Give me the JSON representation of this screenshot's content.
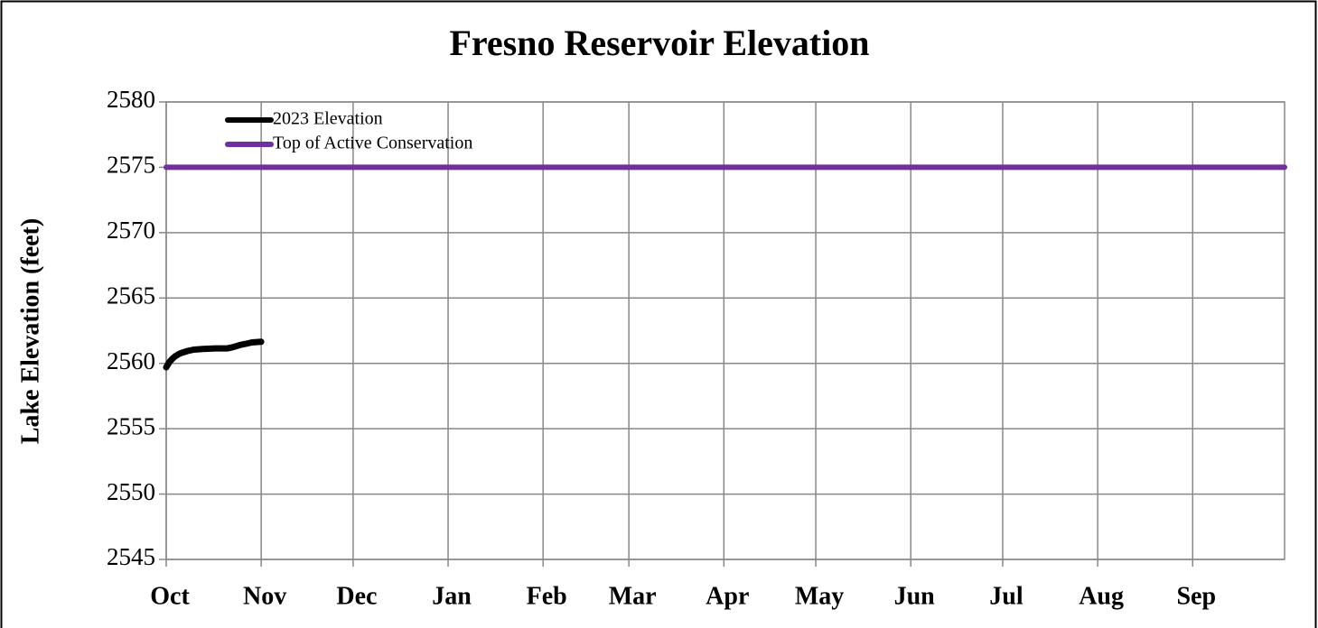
{
  "chart_data": {
    "type": "line",
    "title": "Fresno Reservoir Elevation",
    "y_label": "Lake Elevation (feet)",
    "xlim": [
      0,
      365
    ],
    "xticks": [
      {
        "value": 0,
        "label": "Oct"
      },
      {
        "value": 31,
        "label": "Nov"
      },
      {
        "value": 61,
        "label": "Dec"
      },
      {
        "value": 92,
        "label": "Jan"
      },
      {
        "value": 123,
        "label": "Feb"
      },
      {
        "value": 151,
        "label": "Mar"
      },
      {
        "value": 182,
        "label": "Apr"
      },
      {
        "value": 212,
        "label": "May"
      },
      {
        "value": 243,
        "label": "Jun"
      },
      {
        "value": 273,
        "label": "Jul"
      },
      {
        "value": 304,
        "label": "Aug"
      },
      {
        "value": 335,
        "label": "Sep"
      }
    ],
    "ylim": [
      2545,
      2580
    ],
    "yticks": [
      2545,
      2550,
      2555,
      2560,
      2565,
      2570,
      2575,
      2580
    ],
    "grid": true,
    "legend": "top-left",
    "series": [
      {
        "name": "2023 Elevation",
        "color": "#000000",
        "x": [
          0,
          1,
          2,
          3,
          4,
          5,
          7,
          9,
          12,
          16,
          20,
          22,
          24,
          26,
          28,
          31
        ],
        "values": [
          2559.7,
          2560.1,
          2560.35,
          2560.55,
          2560.7,
          2560.8,
          2560.95,
          2561.05,
          2561.1,
          2561.15,
          2561.15,
          2561.25,
          2561.4,
          2561.5,
          2561.6,
          2561.65
        ]
      },
      {
        "name": "Top of Active Conservation",
        "color": "#7030a0",
        "x": [
          0,
          365
        ],
        "values": [
          2575,
          2575
        ]
      }
    ]
  }
}
